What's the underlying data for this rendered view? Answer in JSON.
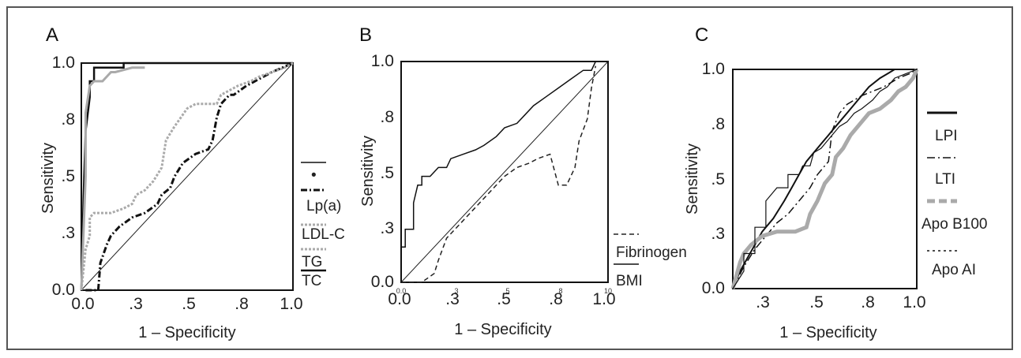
{
  "chart_data": [
    {
      "type": "line",
      "panel_label": "A",
      "xlabel": "1 – Specificity",
      "ylabel": "Sensitivity",
      "x_ticks": [
        "0.0",
        ".3",
        ".5",
        ".8",
        "1.0"
      ],
      "y_ticks": [
        "1.0",
        ".8",
        ".5",
        ".3",
        "0.0"
      ],
      "xlim": [
        0,
        1
      ],
      "ylim": [
        0,
        1
      ],
      "legend": [
        "•",
        "Lp(a)",
        "LDL-C",
        "TG",
        "TC"
      ],
      "series": [
        {
          "legend_index": 0,
          "color": "#111111",
          "width": 2.5,
          "dash": "",
          "x": [
            0.0,
            0.01,
            0.02,
            0.04,
            0.04,
            0.06,
            0.06,
            0.2,
            0.2,
            0.6,
            1.0
          ],
          "y": [
            0.0,
            0.4,
            0.7,
            0.85,
            0.92,
            0.92,
            0.98,
            0.98,
            1.0,
            1.0,
            1.0
          ]
        },
        {
          "legend_index": 1,
          "color": "#aaaaaa",
          "width": 3,
          "dash": "",
          "x": [
            0.0,
            0.02,
            0.02,
            0.04,
            0.06,
            0.1,
            0.14,
            0.16,
            0.24,
            0.3
          ],
          "y": [
            0.0,
            0.5,
            0.78,
            0.9,
            0.92,
            0.92,
            0.96,
            0.96,
            0.98,
            0.98
          ]
        },
        {
          "legend_index": 2,
          "color": "#111111",
          "width": 3,
          "dash": "8 3 2 3",
          "x": [
            0.02,
            0.08,
            0.09,
            0.12,
            0.14,
            0.18,
            0.24,
            0.3,
            0.36,
            0.38,
            0.42,
            0.44,
            0.48,
            0.54,
            0.6,
            0.62,
            0.64,
            0.66,
            0.7,
            0.72,
            0.78,
            0.82,
            0.86,
            0.9,
            1.0
          ],
          "y": [
            0.0,
            0.0,
            0.12,
            0.2,
            0.24,
            0.28,
            0.32,
            0.34,
            0.38,
            0.42,
            0.45,
            0.5,
            0.56,
            0.6,
            0.62,
            0.66,
            0.76,
            0.82,
            0.86,
            0.86,
            0.9,
            0.92,
            0.94,
            0.96,
            1.0
          ]
        },
        {
          "legend_index": 3,
          "color": "#aaaaaa",
          "width": 3,
          "dash": "3 2",
          "x": [
            0.0,
            0.02,
            0.04,
            0.04,
            0.06,
            0.14,
            0.2,
            0.24,
            0.26,
            0.3,
            0.34,
            0.38,
            0.4,
            0.44,
            0.5,
            0.54,
            0.64,
            0.66,
            0.7,
            0.74,
            0.8,
            0.84,
            0.9,
            0.96,
            1.0
          ],
          "y": [
            0.0,
            0.18,
            0.24,
            0.32,
            0.34,
            0.34,
            0.36,
            0.38,
            0.42,
            0.44,
            0.48,
            0.54,
            0.66,
            0.72,
            0.8,
            0.82,
            0.82,
            0.86,
            0.88,
            0.9,
            0.92,
            0.94,
            0.96,
            0.98,
            1.0
          ]
        }
      ]
    },
    {
      "type": "line",
      "panel_label": "B",
      "xlabel": "1 – Specificity",
      "ylabel": "Sensitivity",
      "x_ticks": [
        "0.0",
        ".3",
        ".5",
        ".8",
        "1.0"
      ],
      "y_ticks": [
        "1.0",
        ".8",
        ".5",
        ".3",
        "0.0"
      ],
      "x_minor_labels": [
        "0.0",
        "3",
        "5",
        "8",
        "10"
      ],
      "xlim": [
        0,
        1
      ],
      "ylim": [
        0,
        1
      ],
      "legend": [
        "Fibrinogen",
        "BMI"
      ],
      "series": [
        {
          "legend_index": 0,
          "color": "#222222",
          "width": 1.5,
          "dash": "6 4",
          "x": [
            0.0,
            0.1,
            0.16,
            0.18,
            0.22,
            0.28,
            0.34,
            0.4,
            0.46,
            0.5,
            0.56,
            0.62,
            0.66,
            0.72,
            0.76,
            0.8,
            0.84,
            0.86,
            0.9,
            0.92,
            0.94
          ],
          "y": [
            0.0,
            0.0,
            0.04,
            0.1,
            0.2,
            0.26,
            0.32,
            0.38,
            0.44,
            0.48,
            0.52,
            0.54,
            0.56,
            0.58,
            0.44,
            0.44,
            0.52,
            0.64,
            0.74,
            0.88,
            0.98
          ]
        },
        {
          "legend_index": 1,
          "color": "#111111",
          "width": 1.5,
          "dash": "",
          "x": [
            0.0,
            0.0,
            0.02,
            0.02,
            0.06,
            0.06,
            0.08,
            0.1,
            0.1,
            0.14,
            0.18,
            0.22,
            0.24,
            0.3,
            0.36,
            0.4,
            0.46,
            0.5,
            0.56,
            0.6,
            0.64,
            0.7,
            0.76,
            0.82,
            0.88,
            0.92,
            0.94
          ],
          "y": [
            0.0,
            0.16,
            0.16,
            0.24,
            0.24,
            0.36,
            0.44,
            0.44,
            0.48,
            0.48,
            0.52,
            0.52,
            0.56,
            0.58,
            0.6,
            0.62,
            0.66,
            0.7,
            0.72,
            0.76,
            0.8,
            0.84,
            0.88,
            0.92,
            0.96,
            0.96,
            1.0
          ]
        }
      ]
    },
    {
      "type": "line",
      "panel_label": "C",
      "xlabel": "1 – Specificity",
      "ylabel": "Sensitivity",
      "x_ticks": [
        ".3",
        ".5",
        ".8",
        "1.0"
      ],
      "y_ticks": [
        "1.0",
        ".8",
        ".5",
        ".3",
        "0.0"
      ],
      "xlim": [
        0,
        1
      ],
      "ylim": [
        0,
        1
      ],
      "legend": [
        "LPI",
        "LTI",
        "Apo B100",
        "Apo AI"
      ],
      "series": [
        {
          "legend_index": 0,
          "color": "#111111",
          "width": 2,
          "dash": "",
          "x": [
            0.0,
            0.04,
            0.08,
            0.12,
            0.16,
            0.22,
            0.28,
            0.32,
            0.36,
            0.4,
            0.44,
            0.48,
            0.52,
            0.54,
            0.58,
            0.62,
            0.66,
            0.7,
            0.74,
            0.8,
            0.84,
            0.88,
            0.92,
            0.96,
            1.0
          ],
          "y": [
            0.0,
            0.08,
            0.14,
            0.2,
            0.26,
            0.32,
            0.4,
            0.46,
            0.52,
            0.58,
            0.62,
            0.66,
            0.7,
            0.72,
            0.76,
            0.8,
            0.84,
            0.88,
            0.92,
            0.96,
            0.98,
            1.0,
            1.0,
            1.0,
            1.0
          ]
        },
        {
          "legend_index": 1,
          "color": "#111111",
          "width": 1.5,
          "dash": "10 4 2 4",
          "x": [
            0.0,
            0.06,
            0.12,
            0.18,
            0.24,
            0.3,
            0.36,
            0.42,
            0.46,
            0.5,
            0.52,
            0.54,
            0.58,
            0.62,
            0.66,
            0.7,
            0.76,
            0.82,
            0.86,
            0.9,
            0.96,
            1.0
          ],
          "y": [
            0.0,
            0.1,
            0.18,
            0.24,
            0.3,
            0.34,
            0.4,
            0.46,
            0.52,
            0.56,
            0.58,
            0.72,
            0.8,
            0.84,
            0.86,
            0.88,
            0.9,
            0.92,
            0.94,
            0.96,
            0.98,
            1.0
          ]
        },
        {
          "legend_index": 2,
          "color": "#aaaaaa",
          "width": 5,
          "dash": "",
          "x": [
            0.0,
            0.04,
            0.06,
            0.1,
            0.16,
            0.24,
            0.34,
            0.4,
            0.42,
            0.46,
            0.5,
            0.54,
            0.56,
            0.6,
            0.64,
            0.7,
            0.74,
            0.8,
            0.86,
            0.9,
            0.94,
            0.98,
            1.0
          ],
          "y": [
            0.0,
            0.12,
            0.16,
            0.2,
            0.24,
            0.26,
            0.26,
            0.28,
            0.34,
            0.4,
            0.48,
            0.52,
            0.6,
            0.64,
            0.7,
            0.76,
            0.8,
            0.82,
            0.86,
            0.9,
            0.92,
            0.96,
            1.0
          ]
        },
        {
          "legend_index": 3,
          "color": "#111111",
          "width": 1.2,
          "dash": "",
          "x": [
            0.0,
            0.06,
            0.06,
            0.12,
            0.12,
            0.18,
            0.18,
            0.24,
            0.3,
            0.3,
            0.36,
            0.38,
            0.42,
            0.44,
            0.48,
            0.5,
            0.54,
            0.58,
            0.62,
            0.66,
            0.7,
            0.76,
            0.8,
            0.84,
            0.88,
            0.94,
            1.0
          ],
          "y": [
            0.0,
            0.08,
            0.16,
            0.16,
            0.28,
            0.28,
            0.4,
            0.46,
            0.46,
            0.52,
            0.52,
            0.56,
            0.56,
            0.62,
            0.64,
            0.66,
            0.7,
            0.74,
            0.76,
            0.8,
            0.82,
            0.86,
            0.9,
            0.92,
            0.96,
            0.98,
            1.0
          ]
        }
      ]
    }
  ]
}
